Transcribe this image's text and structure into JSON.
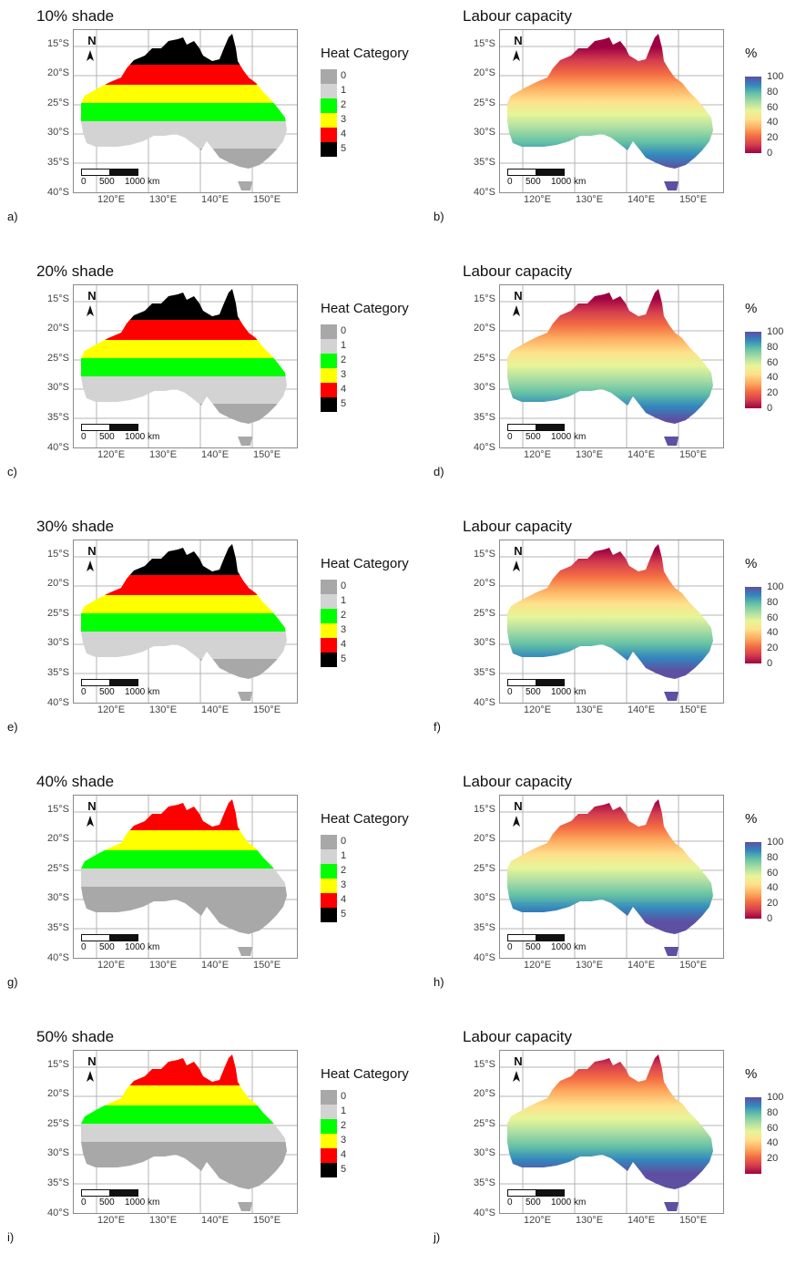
{
  "left_panels": [
    {
      "title": "10% shade",
      "label": "a)",
      "pattern": [
        5,
        4,
        3,
        2,
        1,
        0
      ]
    },
    {
      "title": "20% shade",
      "label": "c)",
      "pattern": [
        5,
        4,
        3,
        2,
        1,
        0
      ]
    },
    {
      "title": "30% shade",
      "label": "e)",
      "pattern": [
        5,
        4,
        3,
        2,
        1,
        0
      ]
    },
    {
      "title": "40% shade",
      "label": "g)",
      "pattern": [
        4,
        3,
        2,
        1,
        0,
        0
      ]
    },
    {
      "title": "50% shade",
      "label": "i)",
      "pattern": [
        4,
        3,
        2,
        1,
        0,
        0
      ]
    }
  ],
  "right_panels": [
    {
      "title": "Labour capacity",
      "label": "b)"
    },
    {
      "title": "Labour capacity",
      "label": "d)"
    },
    {
      "title": "Labour capacity",
      "label": "f)"
    },
    {
      "title": "Labour capacity",
      "label": "h)"
    },
    {
      "title": "Labour capacity",
      "label": "j)"
    }
  ],
  "lat_ticks": [
    "15°S",
    "20°S",
    "25°S",
    "30°S",
    "35°S",
    "40°S"
  ],
  "lon_ticks": [
    "120°E",
    "130°E",
    "140°E",
    "150°E"
  ],
  "north_label": "N",
  "scale_labels": {
    "zero": "0",
    "mid": "500",
    "far": "1000 km"
  },
  "heat_legend": {
    "title": "Heat Category",
    "items": [
      {
        "label": "0",
        "color": "#a8a8a8"
      },
      {
        "label": "1",
        "color": "#d3d3d3"
      },
      {
        "label": "2",
        "color": "#00ff00"
      },
      {
        "label": "3",
        "color": "#ffff00"
      },
      {
        "label": "4",
        "color": "#ff0000"
      },
      {
        "label": "5",
        "color": "#000000"
      }
    ]
  },
  "labour_legend": {
    "title": "%",
    "ticks_default": [
      "100",
      "80",
      "60",
      "40",
      "20",
      "0"
    ],
    "ticks_last": [
      "100",
      "80",
      "60",
      "40",
      "20"
    ]
  },
  "colors": {
    "grid": "#b4b4b4",
    "labour_gradient": [
      "#5e4fa2",
      "#3288bd",
      "#66c2a5",
      "#abdda4",
      "#e6f598",
      "#fee08b",
      "#fdae61",
      "#f46d43",
      "#d53e4f",
      "#9e0142"
    ]
  }
}
